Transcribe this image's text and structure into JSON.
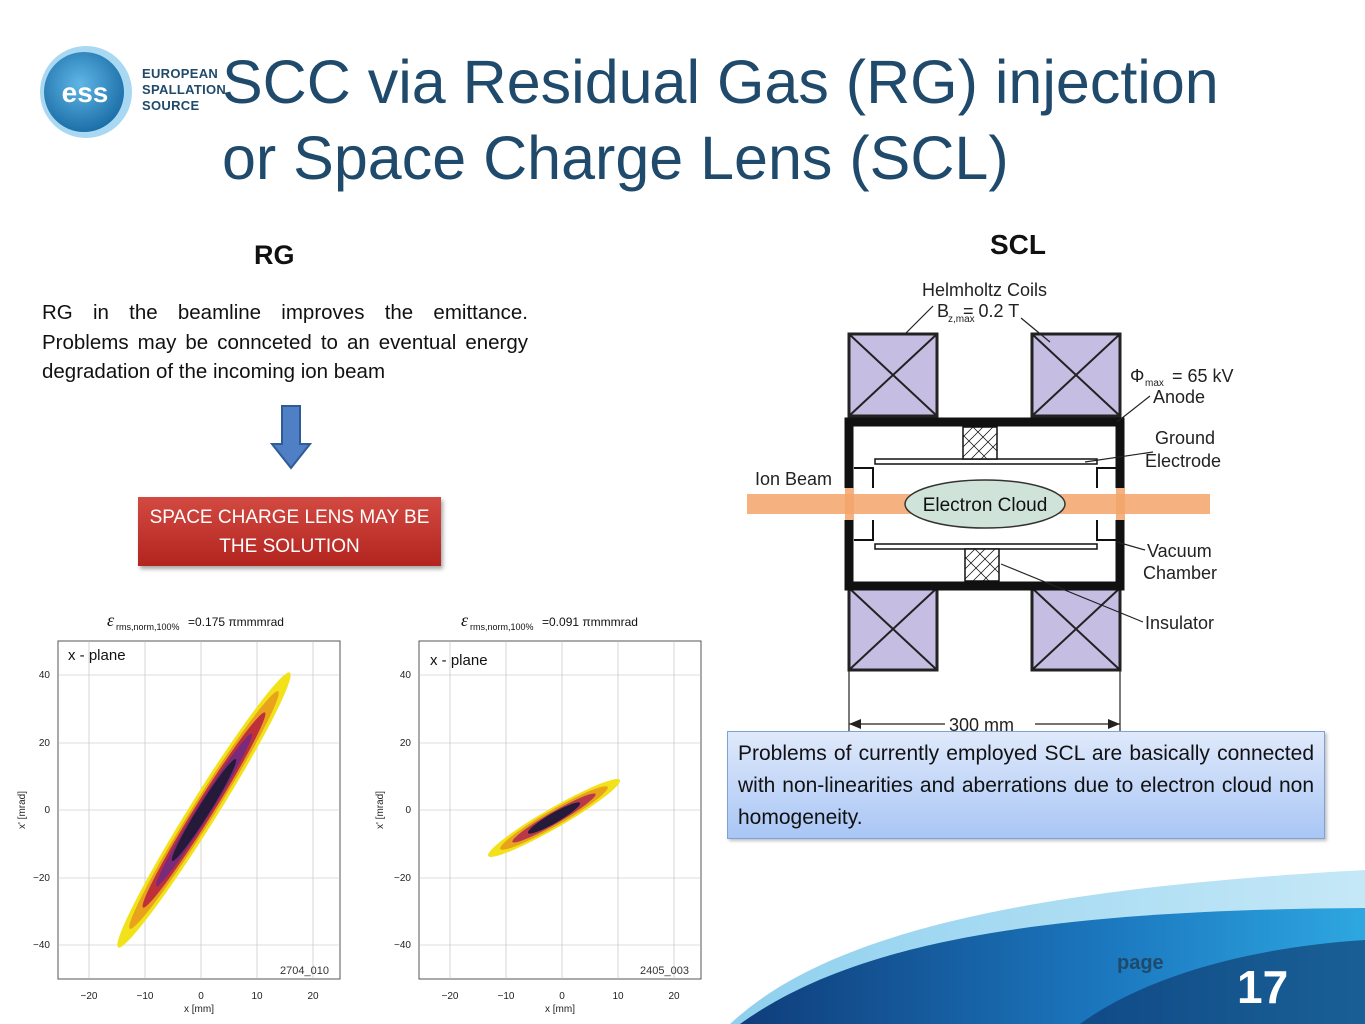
{
  "logo": {
    "line1": "EUROPEAN",
    "line2": "SPALLATION",
    "line3": "SOURCE",
    "badge": "ess"
  },
  "title": {
    "line1": "SCC via Residual Gas (RG) injection",
    "line2": "or Space Charge Lens (SCL)"
  },
  "rg": {
    "heading": "RG",
    "text": "RG in the beamline improves the emittance. Problems may be connceted to an eventual energy degradation of the incoming ion beam",
    "solution": "SPACE CHARGE LENS MAY BE THE SOLUTION"
  },
  "plots": [
    {
      "emittance_sym": "ε",
      "emittance_sub": "rms,norm,100%",
      "emittance_val": "=0.175 πmmmrad",
      "plane": "x - plane",
      "id": "2704_010",
      "xlabel": "x [mm]",
      "ylabel": "x' [mrad]",
      "xticks": [
        "−20",
        "−10",
        "0",
        "10",
        "20"
      ],
      "yticks": [
        "40",
        "20",
        "0",
        "−20",
        "−40"
      ]
    },
    {
      "emittance_sym": "ε",
      "emittance_sub": "rms,norm,100%",
      "emittance_val": " =0.091 πmmmrad",
      "plane": "x - plane",
      "id": "2405_003",
      "xlabel": "x [mm]",
      "ylabel": "x' [mrad]",
      "xticks": [
        "−20",
        "−10",
        "0",
        "10",
        "20"
      ],
      "yticks": [
        "40",
        "20",
        "0",
        "−20",
        "−40"
      ]
    }
  ],
  "scl": {
    "heading": "SCL",
    "coils_label": "Helmholtz Coils",
    "b_label": "B",
    "b_sub": "z,max",
    "b_value": "= 0.2 T",
    "phi_label": "Φ",
    "phi_sub": "max",
    "phi_value": "= 65 kV",
    "anode": "Anode",
    "ground1": "Ground",
    "ground2": "Electrode",
    "ion_beam": "Ion Beam",
    "electron_cloud": "Electron Cloud",
    "vacuum1": "Vacuum",
    "vacuum2": "Chamber",
    "insulator": "Insulator",
    "dimension": "300 mm",
    "note": "Problems of currently employed SCL are basically connected with non-linearities and aberrations due to electron cloud non homogeneity."
  },
  "footer": {
    "page_label": "page",
    "page_number": "17"
  }
}
